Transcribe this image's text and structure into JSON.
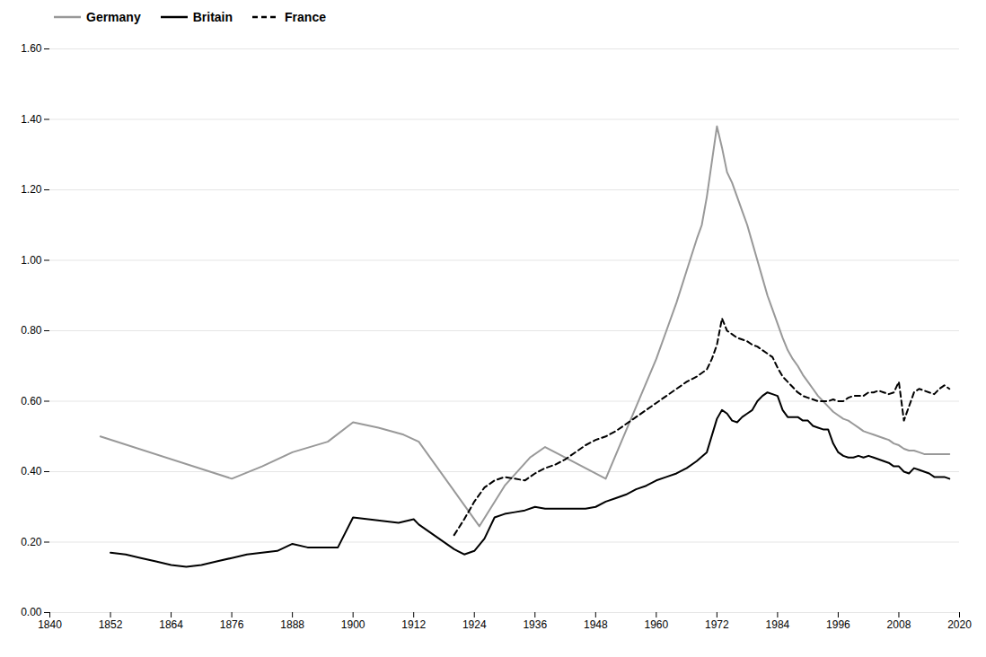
{
  "chart_data": {
    "type": "line",
    "xlim": [
      1840,
      2020
    ],
    "ylim": [
      0.0,
      1.6
    ],
    "xticks": [
      1840,
      1852,
      1864,
      1876,
      1888,
      1900,
      1912,
      1924,
      1936,
      1948,
      1960,
      1972,
      1984,
      1996,
      2008,
      2020
    ],
    "yticks": [
      {
        "value": 0.0,
        "label": "0.00"
      },
      {
        "value": 0.2,
        "label": "0.20"
      },
      {
        "value": 0.4,
        "label": "0.40"
      },
      {
        "value": 0.6,
        "label": "0.60"
      },
      {
        "value": 0.8,
        "label": "0.80"
      },
      {
        "value": 1.0,
        "label": "1.00"
      },
      {
        "value": 1.2,
        "label": "1.20"
      },
      {
        "value": 1.4,
        "label": "1.40"
      },
      {
        "value": 1.6,
        "label": "1.60"
      }
    ],
    "grid": "y",
    "legend": "upper left",
    "series": [
      {
        "name": "Germany",
        "color": "#999999",
        "line_style": "solid",
        "x": [
          1850,
          1876,
          1882,
          1888,
          1895,
          1900,
          1905,
          1910,
          1913,
          1925,
          1930,
          1935,
          1938,
          1950,
          1955,
          1960,
          1962,
          1964,
          1966,
          1968,
          1969,
          1970,
          1971,
          1972,
          1973,
          1974,
          1975,
          1976,
          1977,
          1978,
          1979,
          1980,
          1981,
          1982,
          1983,
          1984,
          1985,
          1986,
          1987,
          1988,
          1989,
          1990,
          1991,
          1992,
          1993,
          1994,
          1995,
          1996,
          1997,
          1998,
          1999,
          2000,
          2001,
          2002,
          2003,
          2004,
          2005,
          2006,
          2007,
          2008,
          2009,
          2010,
          2011,
          2012,
          2013,
          2014,
          2015,
          2016,
          2017,
          2018
        ],
        "values": [
          0.5,
          0.38,
          0.415,
          0.455,
          0.485,
          0.54,
          0.525,
          0.505,
          0.485,
          0.245,
          0.36,
          0.44,
          0.47,
          0.38,
          0.55,
          0.72,
          0.8,
          0.88,
          0.97,
          1.06,
          1.1,
          1.18,
          1.28,
          1.38,
          1.32,
          1.25,
          1.22,
          1.18,
          1.14,
          1.1,
          1.05,
          1.0,
          0.95,
          0.9,
          0.86,
          0.82,
          0.78,
          0.745,
          0.72,
          0.7,
          0.675,
          0.655,
          0.635,
          0.615,
          0.6,
          0.585,
          0.57,
          0.56,
          0.55,
          0.545,
          0.535,
          0.525,
          0.515,
          0.51,
          0.505,
          0.5,
          0.495,
          0.49,
          0.48,
          0.475,
          0.465,
          0.46,
          0.46,
          0.455,
          0.45,
          0.45,
          0.45,
          0.45,
          0.45,
          0.45
        ]
      },
      {
        "name": "Britain",
        "color": "#000000",
        "line_style": "solid",
        "x": [
          1852,
          1855,
          1858,
          1861,
          1864,
          1867,
          1870,
          1873,
          1876,
          1879,
          1882,
          1885,
          1888,
          1891,
          1894,
          1897,
          1900,
          1903,
          1906,
          1909,
          1912,
          1913,
          1920,
          1922,
          1924,
          1926,
          1928,
          1930,
          1932,
          1934,
          1936,
          1938,
          1940,
          1942,
          1944,
          1946,
          1948,
          1950,
          1952,
          1954,
          1956,
          1958,
          1960,
          1962,
          1964,
          1966,
          1968,
          1970,
          1972,
          1973,
          1974,
          1975,
          1976,
          1977,
          1978,
          1979,
          1980,
          1981,
          1982,
          1983,
          1984,
          1985,
          1986,
          1987,
          1988,
          1989,
          1990,
          1991,
          1992,
          1993,
          1994,
          1995,
          1996,
          1997,
          1998,
          1999,
          2000,
          2001,
          2002,
          2003,
          2004,
          2005,
          2006,
          2007,
          2008,
          2009,
          2010,
          2011,
          2012,
          2013,
          2014,
          2015,
          2016,
          2017,
          2018
        ],
        "values": [
          0.17,
          0.165,
          0.155,
          0.145,
          0.135,
          0.13,
          0.135,
          0.145,
          0.155,
          0.165,
          0.17,
          0.175,
          0.195,
          0.185,
          0.185,
          0.185,
          0.27,
          0.265,
          0.26,
          0.255,
          0.265,
          0.25,
          0.18,
          0.165,
          0.175,
          0.21,
          0.27,
          0.28,
          0.285,
          0.29,
          0.3,
          0.295,
          0.295,
          0.295,
          0.295,
          0.295,
          0.3,
          0.315,
          0.325,
          0.335,
          0.35,
          0.36,
          0.375,
          0.385,
          0.395,
          0.41,
          0.43,
          0.455,
          0.55,
          0.575,
          0.565,
          0.545,
          0.54,
          0.555,
          0.565,
          0.575,
          0.6,
          0.615,
          0.625,
          0.62,
          0.615,
          0.575,
          0.555,
          0.555,
          0.555,
          0.545,
          0.545,
          0.53,
          0.525,
          0.52,
          0.52,
          0.48,
          0.455,
          0.445,
          0.44,
          0.44,
          0.445,
          0.44,
          0.445,
          0.44,
          0.435,
          0.43,
          0.425,
          0.415,
          0.415,
          0.4,
          0.395,
          0.41,
          0.405,
          0.4,
          0.395,
          0.385,
          0.385,
          0.385,
          0.38
        ]
      },
      {
        "name": "France",
        "color": "#000000",
        "line_style": "dashed",
        "x": [
          1920,
          1922,
          1924,
          1926,
          1928,
          1930,
          1932,
          1934,
          1936,
          1938,
          1940,
          1942,
          1944,
          1946,
          1948,
          1950,
          1952,
          1954,
          1956,
          1958,
          1960,
          1962,
          1964,
          1966,
          1968,
          1970,
          1971,
          1972,
          1973,
          1974,
          1975,
          1976,
          1977,
          1978,
          1979,
          1980,
          1981,
          1982,
          1983,
          1984,
          1985,
          1986,
          1987,
          1988,
          1989,
          1990,
          1991,
          1992,
          1993,
          1994,
          1995,
          1996,
          1997,
          1998,
          1999,
          2000,
          2001,
          2002,
          2003,
          2004,
          2005,
          2006,
          2007,
          2008,
          2009,
          2010,
          2011,
          2012,
          2013,
          2014,
          2015,
          2016,
          2017,
          2018
        ],
        "values": [
          0.22,
          0.265,
          0.315,
          0.355,
          0.375,
          0.385,
          0.38,
          0.375,
          0.395,
          0.41,
          0.42,
          0.435,
          0.455,
          0.475,
          0.49,
          0.5,
          0.515,
          0.535,
          0.555,
          0.575,
          0.595,
          0.615,
          0.635,
          0.655,
          0.67,
          0.69,
          0.72,
          0.76,
          0.835,
          0.8,
          0.79,
          0.78,
          0.775,
          0.77,
          0.76,
          0.755,
          0.745,
          0.735,
          0.725,
          0.695,
          0.67,
          0.655,
          0.64,
          0.625,
          0.615,
          0.61,
          0.605,
          0.6,
          0.6,
          0.6,
          0.605,
          0.6,
          0.6,
          0.61,
          0.615,
          0.615,
          0.615,
          0.625,
          0.625,
          0.63,
          0.625,
          0.62,
          0.625,
          0.655,
          0.545,
          0.585,
          0.625,
          0.635,
          0.63,
          0.625,
          0.62,
          0.635,
          0.645,
          0.635
        ]
      }
    ]
  }
}
